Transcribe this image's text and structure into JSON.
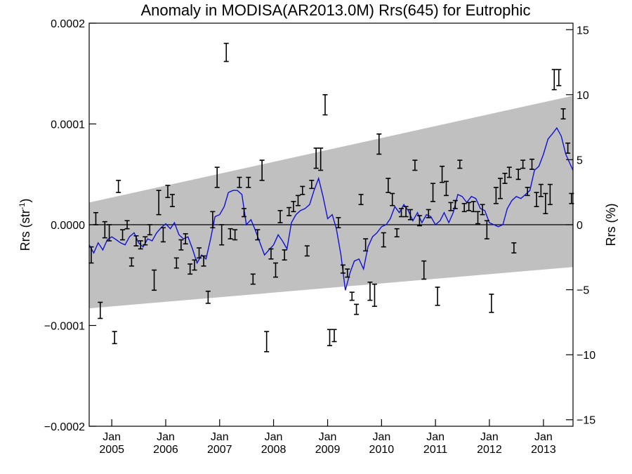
{
  "chart_data": {
    "type": "scatter",
    "title": "Anomaly in MODISA(AR2013.0M) Rrs(645) for Eutrophic",
    "ylabel": "Rrs (str",
    "ylabel_superscript": "-1",
    "ylabel_close": ")",
    "y2label": "Rrs (%)",
    "xlim": [
      "2004-08-01",
      "2013-07-20"
    ],
    "ylim": [
      -0.0002,
      0.0002
    ],
    "y2lim": [
      -15.5,
      15.5
    ],
    "y_ticks": [
      {
        "value": 0.0002,
        "label": "0.0002"
      },
      {
        "value": 0.0001,
        "label": "0.0001"
      },
      {
        "value": 0.0,
        "label": "0.0000"
      },
      {
        "value": -0.0001,
        "label": "−0.0001"
      },
      {
        "value": -0.0002,
        "label": "−0.0002"
      }
    ],
    "y2_ticks": [
      {
        "value": 15,
        "label": "15"
      },
      {
        "value": 10,
        "label": "10"
      },
      {
        "value": 5,
        "label": "5"
      },
      {
        "value": 0,
        "label": "0"
      },
      {
        "value": -5,
        "label": "−5"
      },
      {
        "value": -10,
        "label": "−10"
      },
      {
        "value": -15,
        "label": "−15"
      }
    ],
    "x_ticks": [
      {
        "date": "2005-01-01",
        "month": "Jan",
        "year": "2005"
      },
      {
        "date": "2006-01-01",
        "month": "Jan",
        "year": "2006"
      },
      {
        "date": "2007-01-01",
        "month": "Jan",
        "year": "2007"
      },
      {
        "date": "2008-01-01",
        "month": "Jan",
        "year": "2008"
      },
      {
        "date": "2009-01-01",
        "month": "Jan",
        "year": "2009"
      },
      {
        "date": "2010-01-01",
        "month": "Jan",
        "year": "2010"
      },
      {
        "date": "2011-01-01",
        "month": "Jan",
        "year": "2011"
      },
      {
        "date": "2012-01-01",
        "month": "Jan",
        "year": "2012"
      },
      {
        "date": "2013-01-01",
        "month": "Jan",
        "year": "2013"
      }
    ],
    "band": [
      {
        "date": "2004-08-01",
        "lower": -8.3e-05,
        "upper": 2.2e-05
      },
      {
        "date": "2013-07-20",
        "lower": -4.2e-05,
        "upper": 0.000128
      }
    ],
    "zero_line": 0.0,
    "grid": false,
    "legend": "none",
    "colors": {
      "line": "#1010d8",
      "band": "#c0c0c0",
      "error_bar": "#000000"
    },
    "running_mean": [
      [
        "2004-08-01",
        -2e-05
      ],
      [
        "2004-09-01",
        -2.8e-05
      ],
      [
        "2004-10-01",
        -1.8e-05
      ],
      [
        "2004-11-01",
        -2.5e-05
      ],
      [
        "2004-12-01",
        -1.5e-05
      ],
      [
        "2005-01-01",
        -1.2e-05
      ],
      [
        "2005-02-01",
        -1.5e-05
      ],
      [
        "2005-03-01",
        -1.8e-05
      ],
      [
        "2005-04-01",
        -2e-05
      ],
      [
        "2005-05-01",
        -1.2e-05
      ],
      [
        "2005-06-01",
        -8e-06
      ],
      [
        "2005-07-01",
        -1.8e-05
      ],
      [
        "2005-08-01",
        -2.2e-05
      ],
      [
        "2005-09-01",
        -1.4e-05
      ],
      [
        "2005-10-01",
        -1.6e-05
      ],
      [
        "2005-11-01",
        -8e-06
      ],
      [
        "2005-12-01",
        -3e-06
      ],
      [
        "2006-01-01",
        1e-06
      ],
      [
        "2006-02-01",
        -4e-06
      ],
      [
        "2006-03-01",
        2e-06
      ],
      [
        "2006-04-01",
        -1e-05
      ],
      [
        "2006-05-01",
        -1.4e-05
      ],
      [
        "2006-06-01",
        -1.2e-05
      ],
      [
        "2006-07-01",
        -2.4e-05
      ],
      [
        "2006-08-01",
        -3.8e-05
      ],
      [
        "2006-09-01",
        -3e-05
      ],
      [
        "2006-10-01",
        -3.4e-05
      ],
      [
        "2006-11-01",
        -1.4e-05
      ],
      [
        "2006-12-01",
        8e-06
      ],
      [
        "2007-01-01",
        1e-05
      ],
      [
        "2007-02-01",
        1.8e-05
      ],
      [
        "2007-03-01",
        3.2e-05
      ],
      [
        "2007-04-01",
        3.4e-05
      ],
      [
        "2007-05-01",
        3.4e-05
      ],
      [
        "2007-06-01",
        3e-05
      ],
      [
        "2007-07-01",
        0.0
      ],
      [
        "2007-08-01",
        5e-06
      ],
      [
        "2007-09-01",
        -6e-06
      ],
      [
        "2007-10-01",
        -1.8e-05
      ],
      [
        "2007-11-01",
        -3e-05
      ],
      [
        "2007-12-01",
        -2.5e-05
      ],
      [
        "2008-01-01",
        -2e-05
      ],
      [
        "2008-02-01",
        -1e-05
      ],
      [
        "2008-03-01",
        -1.6e-05
      ],
      [
        "2008-04-01",
        -2.4e-05
      ],
      [
        "2008-05-01",
        2e-06
      ],
      [
        "2008-06-01",
        1e-05
      ],
      [
        "2008-07-01",
        1.4e-05
      ],
      [
        "2008-08-01",
        1.6e-05
      ],
      [
        "2008-09-01",
        2e-05
      ],
      [
        "2008-10-01",
        3.4e-05
      ],
      [
        "2008-11-01",
        4.6e-05
      ],
      [
        "2008-12-01",
        2.8e-05
      ],
      [
        "2009-01-01",
        6e-06
      ],
      [
        "2009-02-01",
        1e-05
      ],
      [
        "2009-03-01",
        -4e-06
      ],
      [
        "2009-04-01",
        -3e-05
      ],
      [
        "2009-05-01",
        -6.5e-05
      ],
      [
        "2009-06-01",
        -4.8e-05
      ],
      [
        "2009-07-01",
        -3.6e-05
      ],
      [
        "2009-08-01",
        -3.4e-05
      ],
      [
        "2009-09-01",
        -4.4e-05
      ],
      [
        "2009-10-01",
        -2.2e-05
      ],
      [
        "2009-11-01",
        -1.2e-05
      ],
      [
        "2009-12-01",
        -8e-06
      ],
      [
        "2010-01-01",
        -2e-06
      ],
      [
        "2010-02-01",
        0.0
      ],
      [
        "2010-03-01",
        6e-06
      ],
      [
        "2010-04-01",
        1.8e-05
      ],
      [
        "2010-05-01",
        1.2e-05
      ],
      [
        "2010-06-01",
        2e-05
      ],
      [
        "2010-07-01",
        1.4e-05
      ],
      [
        "2010-08-01",
        4e-06
      ],
      [
        "2010-09-01",
        1.2e-05
      ],
      [
        "2010-10-01",
        2e-06
      ],
      [
        "2010-11-01",
        1e-05
      ],
      [
        "2010-12-01",
        8e-06
      ],
      [
        "2011-01-01",
        0.0
      ],
      [
        "2011-02-01",
        4e-06
      ],
      [
        "2011-03-01",
        1.2e-05
      ],
      [
        "2011-04-01",
        2e-06
      ],
      [
        "2011-05-01",
        1.2e-05
      ],
      [
        "2011-06-01",
        3e-05
      ],
      [
        "2011-07-01",
        2.8e-05
      ],
      [
        "2011-08-01",
        2.2e-05
      ],
      [
        "2011-09-01",
        2.8e-05
      ],
      [
        "2011-10-01",
        2.6e-05
      ],
      [
        "2011-11-01",
        1.6e-05
      ],
      [
        "2011-12-01",
        1.4e-05
      ],
      [
        "2012-01-01",
        2e-06
      ],
      [
        "2012-02-01",
        0.0
      ],
      [
        "2012-03-01",
        -2e-06
      ],
      [
        "2012-04-01",
        0.0
      ],
      [
        "2012-05-01",
        1.6e-05
      ],
      [
        "2012-06-01",
        2.4e-05
      ],
      [
        "2012-07-01",
        2.8e-05
      ],
      [
        "2012-08-01",
        2.6e-05
      ],
      [
        "2012-09-01",
        3e-05
      ],
      [
        "2012-10-01",
        3.4e-05
      ],
      [
        "2012-11-01",
        5.4e-05
      ],
      [
        "2012-12-01",
        5.8e-05
      ],
      [
        "2013-01-01",
        7e-05
      ],
      [
        "2013-02-01",
        8.5e-05
      ],
      [
        "2013-03-01",
        9e-05
      ],
      [
        "2013-04-01",
        9.6e-05
      ],
      [
        "2013-05-01",
        8.8e-05
      ],
      [
        "2013-06-01",
        7e-05
      ],
      [
        "2013-07-01",
        6e-05
      ],
      [
        "2013-07-20",
        5.4e-05
      ]
    ],
    "points": [
      [
        "2004-08-15",
        -3e-05,
        8e-06
      ],
      [
        "2004-09-15",
        6e-06,
        6e-06
      ],
      [
        "2004-10-15",
        -8.5e-05,
        8e-06
      ],
      [
        "2004-11-15",
        -5e-06,
        8e-06
      ],
      [
        "2004-12-15",
        -8e-06,
        8e-06
      ],
      [
        "2005-01-20",
        -0.000112,
        6e-06
      ],
      [
        "2005-02-15",
        3.8e-05,
        6e-06
      ],
      [
        "2005-03-15",
        -1e-05,
        5e-06
      ],
      [
        "2005-04-15",
        0.0,
        4e-06
      ],
      [
        "2005-05-15",
        -3.7e-05,
        4e-06
      ],
      [
        "2005-06-15",
        -1.6e-05,
        5e-06
      ],
      [
        "2005-07-15",
        -2e-05,
        4e-06
      ],
      [
        "2005-08-15",
        -1.6e-05,
        4e-06
      ],
      [
        "2005-09-15",
        -5e-06,
        5e-06
      ],
      [
        "2005-10-15",
        -5.5e-05,
        1e-05
      ],
      [
        "2005-11-15",
        2.2e-05,
        1.2e-05
      ],
      [
        "2005-12-15",
        -1e-05,
        7e-06
      ],
      [
        "2006-01-15",
        3.3e-05,
        6e-06
      ],
      [
        "2006-02-15",
        2.4e-05,
        6e-06
      ],
      [
        "2006-03-15",
        -3.8e-05,
        5e-06
      ],
      [
        "2006-04-15",
        -2e-05,
        5e-06
      ],
      [
        "2006-05-15",
        -1.4e-05,
        5e-06
      ],
      [
        "2006-06-15",
        -4.4e-05,
        5e-06
      ],
      [
        "2006-07-15",
        -4e-05,
        5e-06
      ],
      [
        "2006-08-15",
        -2.8e-05,
        5e-06
      ],
      [
        "2006-09-15",
        -3.6e-05,
        5e-06
      ],
      [
        "2006-10-15",
        -7.2e-05,
        6e-06
      ],
      [
        "2006-11-15",
        5e-06,
        8e-06
      ],
      [
        "2006-12-15",
        4.7e-05,
        1e-05
      ],
      [
        "2007-01-15",
        -1e-05,
        1e-05
      ],
      [
        "2007-02-15",
        0.000171,
        9e-06
      ],
      [
        "2007-03-15",
        -9e-06,
        5e-06
      ],
      [
        "2007-04-15",
        -1e-05,
        5e-06
      ],
      [
        "2007-05-15",
        4.2e-05,
        5e-06
      ],
      [
        "2007-06-15",
        1.2e-05,
        4e-06
      ],
      [
        "2007-07-15",
        4.2e-05,
        5e-06
      ],
      [
        "2007-08-15",
        -5.4e-05,
        5e-06
      ],
      [
        "2007-09-15",
        -1e-05,
        5e-06
      ],
      [
        "2007-10-15",
        5.4e-05,
        1e-05
      ],
      [
        "2007-11-15",
        -0.000116,
        1e-05
      ],
      [
        "2007-12-15",
        -2.9e-05,
        5e-06
      ],
      [
        "2008-01-15",
        -4.5e-05,
        7e-06
      ],
      [
        "2008-02-15",
        8e-06,
        6e-06
      ],
      [
        "2008-03-15",
        -3e-05,
        5e-06
      ],
      [
        "2008-04-15",
        1.3e-05,
        4e-06
      ],
      [
        "2008-05-15",
        1.8e-05,
        5e-06
      ],
      [
        "2008-06-15",
        2.4e-05,
        5e-06
      ],
      [
        "2008-07-15",
        3.4e-05,
        4e-06
      ],
      [
        "2008-08-15",
        -2.6e-05,
        5e-06
      ],
      [
        "2008-09-15",
        4e-05,
        4e-06
      ],
      [
        "2008-10-15",
        6.6e-05,
        1e-05
      ],
      [
        "2008-11-15",
        6.5e-05,
        1.1e-05
      ],
      [
        "2008-12-15",
        0.000119,
        1e-05
      ],
      [
        "2009-01-15",
        -0.000112,
        8e-06
      ],
      [
        "2009-02-15",
        -0.00011,
        6e-06
      ],
      [
        "2009-03-15",
        2e-06,
        5e-06
      ],
      [
        "2009-04-15",
        -4.4e-05,
        4e-06
      ],
      [
        "2009-05-15",
        -4.8e-05,
        4e-06
      ],
      [
        "2009-06-15",
        -7.1e-05,
        4e-06
      ],
      [
        "2009-07-15",
        -8.4e-05,
        5e-06
      ],
      [
        "2009-08-15",
        2.5e-05,
        5e-06
      ],
      [
        "2009-09-15",
        -2e-05,
        6e-06
      ],
      [
        "2009-10-15",
        -6.6e-05,
        9e-06
      ],
      [
        "2009-11-15",
        -7e-05,
        1.1e-05
      ],
      [
        "2009-12-15",
        8e-05,
        1e-05
      ],
      [
        "2010-01-15",
        -1.5e-05,
        7e-06
      ],
      [
        "2010-02-15",
        3.9e-05,
        7e-06
      ],
      [
        "2010-03-15",
        2.5e-05,
        6e-06
      ],
      [
        "2010-04-15",
        -8e-06,
        4e-06
      ],
      [
        "2010-05-15",
        1.2e-05,
        4e-06
      ],
      [
        "2010-06-15",
        1.3e-05,
        5e-06
      ],
      [
        "2010-07-15",
        1e-05,
        5e-06
      ],
      [
        "2010-08-15",
        5.9e-05,
        5e-06
      ],
      [
        "2010-09-15",
        4e-06,
        5e-06
      ],
      [
        "2010-10-15",
        -4.5e-05,
        9e-06
      ],
      [
        "2010-11-15",
        1.1e-05,
        4e-06
      ],
      [
        "2010-12-15",
        3.2e-05,
        9e-06
      ],
      [
        "2011-01-15",
        -7.1e-05,
        9e-06
      ],
      [
        "2011-02-15",
        5e-05,
        8e-06
      ],
      [
        "2011-03-15",
        3.6e-05,
        7e-06
      ],
      [
        "2011-04-15",
        1.8e-05,
        4e-06
      ],
      [
        "2011-05-15",
        2e-05,
        4e-06
      ],
      [
        "2011-06-15",
        6e-05,
        4e-06
      ],
      [
        "2011-07-15",
        1.7e-05,
        4e-06
      ],
      [
        "2011-08-15",
        1.8e-05,
        4e-06
      ],
      [
        "2011-09-15",
        1.8e-05,
        5e-06
      ],
      [
        "2011-10-15",
        7e-06,
        6e-06
      ],
      [
        "2011-11-15",
        1.5e-05,
        5e-06
      ],
      [
        "2011-12-15",
        -5e-06,
        9e-06
      ],
      [
        "2012-01-15",
        -7.8e-05,
        9e-06
      ],
      [
        "2012-02-15",
        2.9e-05,
        8e-06
      ],
      [
        "2012-03-15",
        3.6e-05,
        1e-05
      ],
      [
        "2012-04-15",
        4.6e-05,
        5e-06
      ],
      [
        "2012-05-15",
        5.2e-05,
        5e-06
      ],
      [
        "2012-06-15",
        -2.3e-05,
        5e-06
      ],
      [
        "2012-07-15",
        5e-05,
        5e-06
      ],
      [
        "2012-08-15",
        6e-05,
        4e-06
      ],
      [
        "2012-09-15",
        3.3e-05,
        4e-06
      ],
      [
        "2012-10-15",
        6e-05,
        5e-06
      ],
      [
        "2012-11-15",
        2.5e-05,
        7e-06
      ],
      [
        "2012-12-15",
        3.4e-05,
        6e-06
      ],
      [
        "2013-01-15",
        2.1e-05,
        1e-05
      ],
      [
        "2013-02-15",
        3e-05,
        1e-05
      ],
      [
        "2013-03-15",
        0.000144,
        1e-05
      ],
      [
        "2013-04-15",
        0.000146,
        8e-06
      ],
      [
        "2013-05-15",
        0.00011,
        5e-06
      ],
      [
        "2013-06-15",
        7.6e-05,
        5e-06
      ],
      [
        "2013-07-10",
        2.6e-05,
        5e-06
      ]
    ]
  }
}
